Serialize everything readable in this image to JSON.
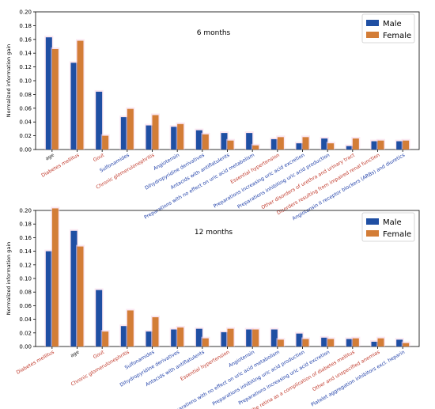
{
  "chart_data": [
    {
      "type": "bar",
      "title": "6 months",
      "xlabel": "",
      "ylabel": "Normalized information gain",
      "ylim": [
        0,
        0.2
      ],
      "yticks": [
        "0.00",
        "0.02",
        "0.04",
        "0.06",
        "0.08",
        "0.10",
        "0.12",
        "0.14",
        "0.16",
        "0.18",
        "0.20"
      ],
      "legend_position": "top-right",
      "categories": [
        {
          "label": "age",
          "color": "#222222"
        },
        {
          "label": "Diabetes mellitus",
          "color": "#c0392b"
        },
        {
          "label": "Gout",
          "color": "#c0392b"
        },
        {
          "label": "Sulfonamides",
          "color": "#1f3fa8"
        },
        {
          "label": "Chronic glomerulonephritis",
          "color": "#c0392b"
        },
        {
          "label": "Angiotensin",
          "color": "#1f3fa8"
        },
        {
          "label": "Dihydropyridine derivatives",
          "color": "#1f3fa8"
        },
        {
          "label": "Antacids with antiflatulents",
          "color": "#1f3fa8"
        },
        {
          "label": "Preparations with no effect on uric acid metabolism",
          "color": "#1f3fa8"
        },
        {
          "label": "Essential hypertension",
          "color": "#c0392b"
        },
        {
          "label": "Preparations increasing uric acid excretion",
          "color": "#1f3fa8"
        },
        {
          "label": "Preparations inhibiting uric acid production",
          "color": "#1f3fa8"
        },
        {
          "label": "Other disorders of urethra and urinary tract",
          "color": "#c0392b"
        },
        {
          "label": "Disorders resulting from impaired renal function",
          "color": "#c0392b"
        },
        {
          "label": "Angiotensin II receptor blockers (ARBs) and diuretics",
          "color": "#1f3fa8"
        }
      ],
      "series": [
        {
          "name": "Male",
          "color": "#1f4fa3",
          "values": [
            0.163,
            0.126,
            0.084,
            0.047,
            0.035,
            0.033,
            0.028,
            0.024,
            0.024,
            0.015,
            0.009,
            0.016,
            0.005,
            0.012,
            0.012
          ]
        },
        {
          "name": "Female",
          "color": "#d37d37",
          "values": [
            0.146,
            0.158,
            0.02,
            0.059,
            0.05,
            0.037,
            0.022,
            0.013,
            0.006,
            0.018,
            0.018,
            0.009,
            0.016,
            0.013,
            0.013
          ]
        }
      ]
    },
    {
      "type": "bar",
      "title": "12 months",
      "xlabel": "",
      "ylabel": "Normalized information gain",
      "ylim": [
        0,
        0.2
      ],
      "yticks": [
        "0.00",
        "0.02",
        "0.04",
        "0.06",
        "0.08",
        "0.10",
        "0.12",
        "0.14",
        "0.16",
        "0.18",
        "0.20"
      ],
      "legend_position": "top-right",
      "categories": [
        {
          "label": "Diabetes mellitus",
          "color": "#c0392b"
        },
        {
          "label": "age",
          "color": "#222222"
        },
        {
          "label": "Gout",
          "color": "#c0392b"
        },
        {
          "label": "Chronic glomerulonephritis",
          "color": "#c0392b"
        },
        {
          "label": "Sulfonamides",
          "color": "#1f3fa8"
        },
        {
          "label": "Dihydropyridine derivatives",
          "color": "#1f3fa8"
        },
        {
          "label": "Antacids with antiflatulents",
          "color": "#1f3fa8"
        },
        {
          "label": "Essential hypertension",
          "color": "#c0392b"
        },
        {
          "label": "Angiotensin",
          "color": "#1f3fa8"
        },
        {
          "label": "Preparations with no effect on uric acid metabolism",
          "color": "#1f3fa8"
        },
        {
          "label": "Preparations inhibiting uric acid production",
          "color": "#1f3fa8"
        },
        {
          "label": "Preparations increasing uric acid excretion",
          "color": "#1f3fa8"
        },
        {
          "label": "Disease of the retina as a complication of diabetes mellitus",
          "color": "#c0392b"
        },
        {
          "label": "Other and unspecified anemias",
          "color": "#c0392b"
        },
        {
          "label": "Platelet aggregation inhibitors excl. heparin",
          "color": "#1f3fa8"
        }
      ],
      "series": [
        {
          "name": "Male",
          "color": "#1f4fa3",
          "values": [
            0.14,
            0.17,
            0.083,
            0.03,
            0.022,
            0.025,
            0.026,
            0.021,
            0.025,
            0.025,
            0.019,
            0.013,
            0.011,
            0.007,
            0.01
          ]
        },
        {
          "name": "Female",
          "color": "#d37d37",
          "values": [
            0.203,
            0.147,
            0.022,
            0.053,
            0.043,
            0.028,
            0.012,
            0.026,
            0.025,
            0.01,
            0.011,
            0.011,
            0.012,
            0.012,
            0.005
          ]
        }
      ]
    }
  ]
}
